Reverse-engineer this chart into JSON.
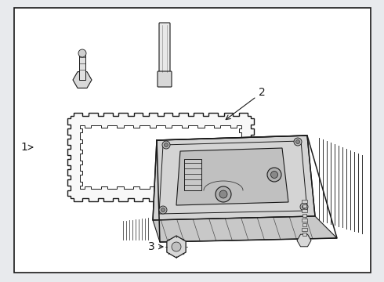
{
  "background_color": "#e8eaed",
  "box_bg": "#f0f2f5",
  "line_color": "#1a1a1a",
  "label_1": "1",
  "label_2": "2",
  "label_3": "3",
  "gasket_color": "#f8f8f8",
  "pan_color": "#e8e8e8",
  "pan_inner_color": "#d8d8d8",
  "part_color": "#e0e0e0"
}
